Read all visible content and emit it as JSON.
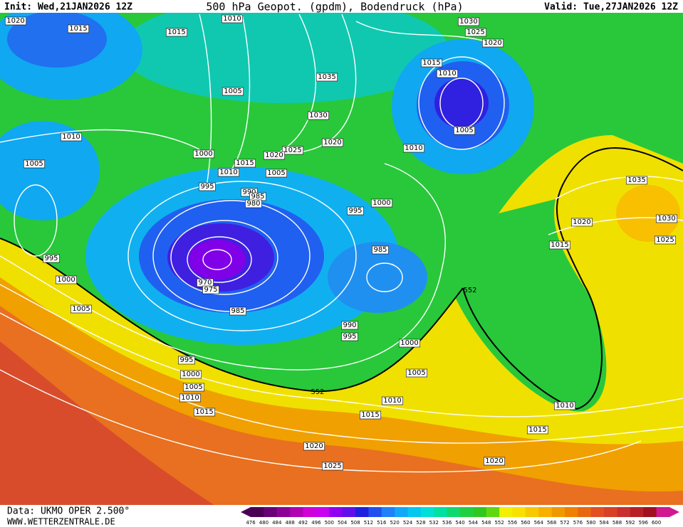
{
  "header": {
    "init": "Init: Wed,21JAN2026 12Z",
    "title": "500 hPa Geopot. (gpdm), Bodendruck (hPa)",
    "valid": "Valid: Tue,27JAN2026 12Z"
  },
  "map": {
    "isobar_labels": [
      1020,
      1015,
      1015,
      1010,
      1030,
      1025,
      1020,
      1015,
      1010,
      1035,
      1005,
      1030,
      1005,
      1010,
      1020,
      1025,
      1010,
      1020,
      1000,
      1015,
      1005,
      1010,
      1005,
      995,
      990,
      985,
      980,
      1035,
      1000,
      995,
      1030,
      1020,
      1025,
      1015,
      985,
      995,
      1000,
      970,
      975,
      1005,
      985,
      990,
      995,
      1000,
      995,
      1000,
      1005,
      1005,
      1010,
      1010,
      1010,
      1015,
      1015,
      1015,
      1020,
      1020,
      1025,
      552,
      552
    ]
  },
  "footer": {
    "data": "Data: UKMO OPER 2.500°",
    "site": "WWW.WETTERZENTRALE.DE"
  },
  "legend": {
    "levels": [
      476,
      480,
      484,
      488,
      492,
      496,
      500,
      504,
      508,
      512,
      516,
      520,
      524,
      528,
      532,
      536,
      540,
      544,
      548,
      552,
      556,
      560,
      564,
      568,
      572,
      576,
      580,
      584,
      588,
      592,
      596,
      600
    ],
    "colors": [
      "#4b0055",
      "#6a0078",
      "#8c0096",
      "#b000b4",
      "#d000d8",
      "#c800f0",
      "#9000f0",
      "#6010e8",
      "#2020e0",
      "#2050f0",
      "#2080f8",
      "#10a8f8",
      "#00c8f0",
      "#00e0d8",
      "#00e0a0",
      "#10d870",
      "#20d040",
      "#30c820",
      "#60d810",
      "#f0f000",
      "#f8e000",
      "#f8c800",
      "#f8b000",
      "#f09800",
      "#f08000",
      "#e86810",
      "#e05020",
      "#d84028",
      "#c83030",
      "#b82028",
      "#a01020",
      "#d01890"
    ]
  }
}
